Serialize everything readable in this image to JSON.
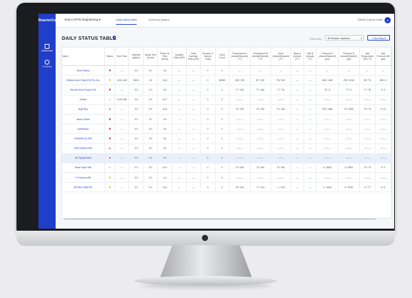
{
  "app": {
    "logo": "ReactorConnect"
  },
  "sidebar": {
    "items": [
      {
        "label": "Dashboard",
        "icon": "grid-icon"
      },
      {
        "label": "Company",
        "icon": "building-icon"
      }
    ]
  },
  "topbar": {
    "company": "Graco AFTD Engineering",
    "tabs": [
      {
        "label": "Daily status table",
        "active": true
      },
      {
        "label": "Summary graphs",
        "active": false
      }
    ],
    "language": "EN",
    "user": "Courtney Stahl",
    "avatar_icon": "user-icon"
  },
  "page": {
    "title": "DAILY STATUS TABLE",
    "filter_label": "Filtered By",
    "filter_value": "All Reactor Systems",
    "new_report": "New Report"
  },
  "table": {
    "headers": [
      "Name",
      "Status",
      "Start Time",
      "Material (gallon)",
      "Spray Time (hours)",
      "Power On Time (hours)",
      "Sprayed Mats (A/B)",
      "Daily Average Ratio (A/B)",
      "Number of Alarms Today",
      "Cycle Count",
      "Temperature A (Actual/Setpoint) (°F)",
      "Temperature B (Actual/Setpoint) (°F)",
      "Hose (Actual/Setpoint) (°F)",
      "Base A (Actual) (°F)",
      "Inlet B (Actual) (°F)",
      "Pressure A (Actual/Setpoint) (psi)",
      "Pressure B (Actual/Setpoint) (psi)",
      "Inlet Temperature A/B (°F)",
      "Inlet Pressure A/B (psi)"
    ],
    "status_colors": {
      "red": "#e0383e",
      "yellow": "#f1c40f"
    },
    "rows": [
      {
        "cells": [
          "Gerrit Samry",
          "red",
          "—",
          "0.0",
          "0.0",
          "0.0",
          "—",
          "—",
          "0",
          "0",
          "—",
          "—",
          "—",
          "—",
          "—",
          "—",
          "—",
          "—",
          "—"
        ]
      },
      {
        "cells": [
          "Electric Drum Pump E30 Pro Dor",
          "yellow",
          "10:01 AM",
          "360.0",
          "4.9",
          "14.6",
          "—",
          "—",
          "0",
          "26030",
          "103 / 120",
          "87 / 120",
          "78 / 100",
          "—",
          "—",
          "245 / 1340",
          "230 / 1240",
          "60 / 76",
          "260 / 0"
        ]
      },
      {
        "cells": [
          "Electric Drum Pump H-30",
          "red",
          "—",
          "0.0",
          "0.0",
          "0.0",
          "—",
          "—",
          "0",
          "4",
          "77 / 160",
          "77 / 160",
          "77 / 76",
          "—",
          "—",
          "12 / 0",
          "77 / 0",
          "77 / 76",
          "0 / 0"
        ]
      },
      {
        "cells": [
          "Gerald",
          "yellow",
          "11:01 AM",
          "0.0",
          "0.0",
          "15.7",
          "—",
          "—",
          "0",
          "2",
          "— / —",
          "— / —",
          "— / —",
          "—",
          "—",
          "— / —",
          "— / —",
          "— / —",
          "— / —"
        ]
      },
      {
        "cells": [
          "Argh Boy",
          "red",
          "—",
          "0.0",
          "0.0",
          "14.6",
          "—",
          "—",
          "0",
          "0",
          "73 / 190",
          "73 / 190",
          "73 / 130",
          "—",
          "—",
          "702 / 1600",
          "70 / 1500",
          "73 / 73",
          "0 / 41"
        ]
      },
      {
        "cells": [
          "Jacob Clendo",
          "red",
          "—",
          "0.0",
          "0.0",
          "0.0",
          "—",
          "—",
          "0",
          "0",
          "— / —",
          "— / —",
          "— / —",
          "—",
          "—",
          "— / —",
          "— / —",
          "— / —",
          "— / —"
        ]
      },
      {
        "cells": [
          "JoeReactor",
          "red",
          "—",
          "0.0",
          "0.0",
          "0.0",
          "—",
          "—",
          "0",
          "0",
          "— / —",
          "— / —",
          "— / —",
          "—",
          "—",
          "— / —",
          "— / —",
          "— / —",
          "— / —"
        ]
      },
      {
        "cells": [
          "SPANISH IQ E30",
          "red",
          "—",
          "0.0",
          "0.0",
          "0.0",
          "—",
          "—",
          "0",
          "0",
          "— / —",
          "— / —",
          "— / —",
          "—",
          "—",
          "— / —",
          "— / —",
          "— / —",
          "— / —"
        ]
      },
      {
        "cells": [
          "E30T0162017549",
          "red",
          "—",
          "0.0",
          "0.0",
          "0.0",
          "—",
          "—",
          "0",
          "0",
          "— / —",
          "— / —",
          "— / —",
          "—",
          "—",
          "— / —",
          "— / —",
          "— / —",
          "— / —"
        ]
      },
      {
        "cells": [
          "HQ Spray Booth",
          "red",
          "—",
          "0.0",
          "0.0",
          "0.3",
          "—",
          "—",
          "0",
          "0",
          "— / —",
          "— / —",
          "— / —",
          "—",
          "—",
          "— / —",
          "— / —",
          "— / —",
          "— / —"
        ]
      },
      {
        "cells": [
          "Steve Hope Test",
          "yellow",
          "—",
          "0.0",
          "0.0",
          "14.0",
          "—",
          "—",
          "0",
          "0",
          "73 / 160",
          "73 / 160",
          "73 / 160",
          "—",
          "—",
          "0 / 1600",
          "0 / 1600",
          "73 / 73",
          "0 / 0"
        ]
      },
      {
        "cells": [
          "TJ Horizon #98",
          "yellow",
          "—",
          "0.0",
          "0.0",
          "1.4",
          "—",
          "—",
          "0",
          "0",
          "— / —",
          "— / —",
          "— / —",
          "—",
          "—",
          "— / —",
          "— / —",
          "— / —",
          "— / —"
        ]
      },
      {
        "cells": [
          "357320170662787",
          "yellow",
          "—",
          "0.0",
          "0.0",
          "11.0",
          "—",
          "—",
          "0",
          "0",
          "78 / 120",
          "77 / 113",
          "— / 120",
          "—",
          "—",
          "0 / 1000",
          "0 / 1000",
          "77 / 77",
          "0 / 0"
        ]
      }
    ]
  }
}
